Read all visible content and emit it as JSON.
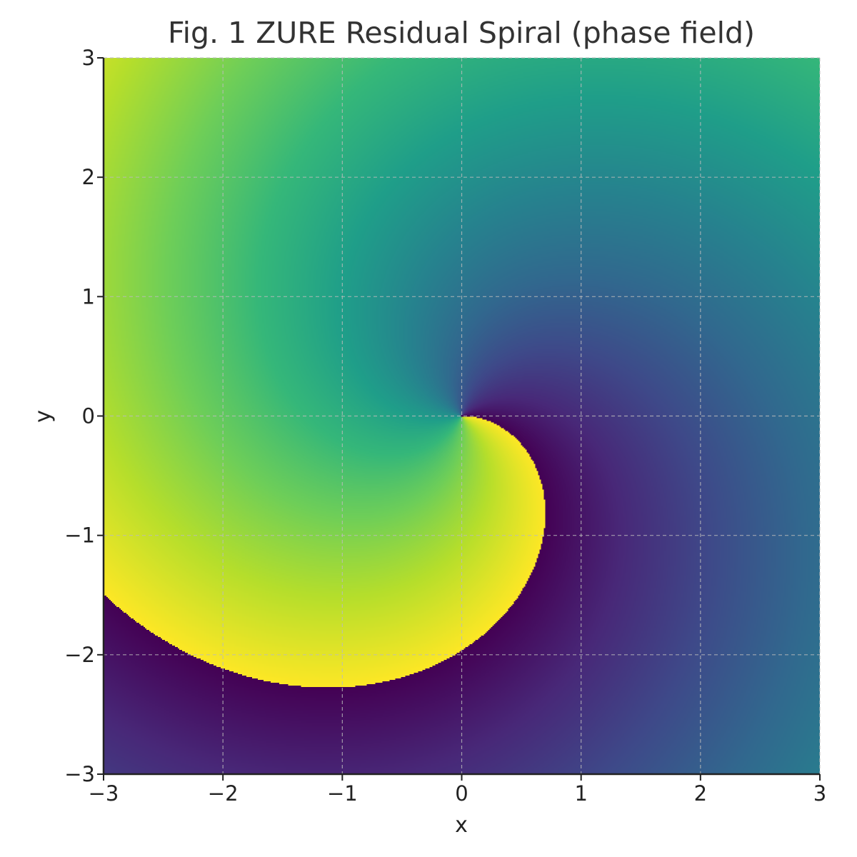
{
  "chart_data": {
    "type": "heatmap",
    "title": "Fig. 1  ZURE Residual Spiral (phase field)",
    "xlabel": "x",
    "ylabel": "y",
    "xlim": [
      -3,
      3
    ],
    "ylim": [
      -3,
      3
    ],
    "xticks": [
      -3,
      -2,
      -1,
      0,
      1,
      2,
      3
    ],
    "yticks": [
      -3,
      -2,
      -1,
      0,
      1,
      2,
      3
    ],
    "xtick_labels": [
      "−3",
      "−2",
      "−1",
      "0",
      "1",
      "2",
      "3"
    ],
    "ytick_labels": [
      "−3",
      "−2",
      "−1",
      "0",
      "1",
      "2",
      "3"
    ],
    "grid": true,
    "colormap": "viridis",
    "field": "phase = (atan2(y, x) + 0.8 * r) mod 2π",
    "spiral_gain": 0.8,
    "colors": {
      "viridis": [
        "#440154",
        "#482878",
        "#3e4989",
        "#31688e",
        "#26828e",
        "#1f9e89",
        "#35b779",
        "#6ece58",
        "#b5de2b",
        "#fde725"
      ],
      "grid": "#bbbbbb",
      "axis": "#222222"
    }
  }
}
